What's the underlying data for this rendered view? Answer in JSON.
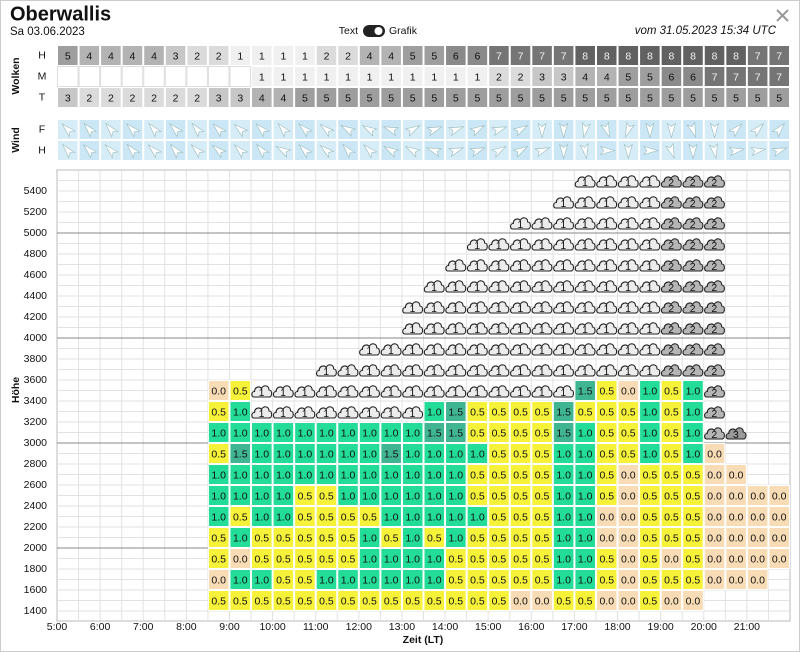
{
  "header": {
    "title": "Oberwallis",
    "date": "Sa 03.06.2023",
    "toggle": [
      "Text",
      "Grafik"
    ],
    "issued": "vom 31.05.2023 15:34 UTC"
  },
  "wolken": {
    "title": "Wolken",
    "rows": [
      {
        "label": "H",
        "values": [
          5,
          4,
          4,
          4,
          4,
          3,
          2,
          2,
          1,
          1,
          1,
          1,
          2,
          2,
          4,
          4,
          5,
          5,
          6,
          6,
          7,
          7,
          7,
          7,
          8,
          8,
          8,
          8,
          8,
          8,
          8,
          8,
          7,
          7
        ]
      },
      {
        "label": "M",
        "values": [
          null,
          null,
          null,
          null,
          null,
          null,
          null,
          null,
          null,
          1,
          1,
          1,
          1,
          1,
          1,
          1,
          1,
          1,
          1,
          1,
          2,
          2,
          3,
          3,
          4,
          4,
          5,
          5,
          6,
          6,
          7,
          7,
          7,
          7
        ]
      },
      {
        "label": "T",
        "values": [
          3,
          2,
          2,
          2,
          2,
          2,
          2,
          3,
          3,
          4,
          4,
          5,
          5,
          5,
          5,
          5,
          5,
          5,
          5,
          5,
          5,
          5,
          5,
          5,
          5,
          5,
          5,
          5,
          5,
          5,
          5,
          5,
          5,
          5
        ]
      }
    ]
  },
  "wind": {
    "title": "Wind",
    "rows": [
      {
        "label": "F",
        "richtung": [
          315,
          320,
          320,
          315,
          320,
          315,
          320,
          315,
          310,
          315,
          320,
          315,
          310,
          300,
          300,
          290,
          60,
          70,
          70,
          60,
          70,
          60,
          180,
          180,
          190,
          160,
          200,
          180,
          180,
          160,
          180,
          45,
          45,
          40
        ]
      },
      {
        "label": "H",
        "richtung": [
          320,
          315,
          315,
          320,
          315,
          320,
          315,
          310,
          315,
          320,
          300,
          315,
          310,
          320,
          315,
          300,
          300,
          290,
          70,
          70,
          60,
          60,
          70,
          180,
          170,
          90,
          180,
          90,
          160,
          180,
          170,
          80,
          80,
          70
        ]
      }
    ]
  },
  "profil": {
    "y_label": "Höhe",
    "x_label": "Zeit (LT)",
    "hoehen": [
      "1400",
      "1600",
      "1800",
      "2000",
      "2200",
      "2400",
      "2600",
      "2800",
      "3000",
      "3200",
      "3400",
      "3600",
      "3800",
      "4000",
      "4200",
      "4400",
      "4600",
      "4800",
      "5000",
      "5200",
      "5400"
    ],
    "zeiten": [
      "5:00",
      "6:00",
      "7:00",
      "8:00",
      "9:00",
      "10:00",
      "11:00",
      "12:00",
      "13:00",
      "14:00",
      "15:00",
      "16:00",
      "17:00",
      "18:00",
      "19:00",
      "20:00",
      "21:00"
    ],
    "farben": {
      "0.0": "#f8dcb6",
      "0.5": "#f6f23a",
      "1.0": "#22dc97",
      "1.5": "#40b592"
    },
    "rows": [
      [
        null,
        null,
        null,
        null,
        null,
        null,
        null,
        "0.5",
        "0.5",
        "0.5",
        "0.5",
        "0.5",
        "0.5",
        "0.5",
        "0.5",
        "0.5",
        "0.5",
        "0.5",
        "0.5",
        "0.5",
        "0.5",
        "0.0",
        "0.0",
        "0.5",
        "0.5",
        "0.0",
        "0.0",
        "0.5",
        "0.0",
        "0.0",
        null,
        null,
        null,
        null
      ],
      [
        null,
        null,
        null,
        null,
        null,
        null,
        null,
        "0.0",
        "1.0",
        "1.0",
        "0.5",
        "0.5",
        "1.0",
        "1.0",
        "1.0",
        "1.0",
        "1.0",
        "1.0",
        "0.5",
        "0.5",
        "0.5",
        "0.5",
        "0.5",
        "1.0",
        "1.0",
        "0.5",
        "0.0",
        "0.5",
        "0.5",
        "0.5",
        "0.0",
        "0.0",
        "0.0",
        null
      ],
      [
        null,
        null,
        null,
        null,
        null,
        null,
        null,
        "0.5",
        "0.0",
        "0.5",
        "0.5",
        "0.5",
        "0.5",
        "0.5",
        "1.0",
        "1.0",
        "1.0",
        "1.0",
        "0.5",
        "0.5",
        "0.5",
        "0.5",
        "0.5",
        "1.0",
        "1.0",
        "0.5",
        "0.0",
        "0.5",
        "0.0",
        "0.5",
        "0.0",
        "0.0",
        "0.0",
        "0.0"
      ],
      [
        null,
        null,
        null,
        null,
        null,
        null,
        null,
        "0.5",
        "1.0",
        "0.5",
        "0.5",
        "0.5",
        "0.5",
        "0.5",
        "1.0",
        "0.5",
        "1.0",
        "0.5",
        "1.0",
        "0.5",
        "0.5",
        "0.5",
        "0.5",
        "1.0",
        "1.0",
        "0.0",
        "0.0",
        "0.5",
        "0.5",
        "0.5",
        "0.0",
        "0.0",
        "0.0",
        "0.0"
      ],
      [
        null,
        null,
        null,
        null,
        null,
        null,
        null,
        "1.0",
        "0.5",
        "1.0",
        "1.0",
        "0.5",
        "0.5",
        "0.5",
        "0.5",
        "1.0",
        "1.0",
        "1.0",
        "1.0",
        "1.0",
        "0.5",
        "0.5",
        "0.5",
        "1.0",
        "1.0",
        "0.0",
        "0.0",
        "0.5",
        "0.5",
        "0.5",
        "0.0",
        "0.0",
        "0.0",
        "0.0"
      ],
      [
        null,
        null,
        null,
        null,
        null,
        null,
        null,
        "1.0",
        "1.0",
        "1.0",
        "1.0",
        "0.5",
        "0.5",
        "1.0",
        "1.0",
        "1.0",
        "1.0",
        "1.0",
        "1.0",
        "0.5",
        "0.5",
        "0.5",
        "0.5",
        "1.0",
        "1.0",
        "0.5",
        "0.0",
        "0.5",
        "0.5",
        "0.5",
        "0.0",
        "0.0",
        "0.0",
        "0.0"
      ],
      [
        null,
        null,
        null,
        null,
        null,
        null,
        null,
        "1.0",
        "1.0",
        "1.0",
        "1.0",
        "1.0",
        "1.0",
        "1.0",
        "1.0",
        "1.0",
        "1.0",
        "1.0",
        "1.0",
        "0.5",
        "0.5",
        "0.5",
        "0.5",
        "1.0",
        "1.0",
        "0.5",
        "0.0",
        "0.5",
        "0.5",
        "0.5",
        "0.0",
        "0.0",
        null,
        null
      ],
      [
        null,
        null,
        null,
        null,
        null,
        null,
        null,
        "0.5",
        "1.5",
        "1.0",
        "1.0",
        "1.0",
        "1.0",
        "1.0",
        "1.0",
        "1.5",
        "1.0",
        "1.0",
        "1.0",
        "1.0",
        "0.5",
        "0.5",
        "0.5",
        "1.0",
        "1.0",
        "0.5",
        "0.5",
        "1.0",
        "0.5",
        "1.0",
        "0.0",
        null,
        null,
        null
      ],
      [
        null,
        null,
        null,
        null,
        null,
        null,
        null,
        "1.0",
        "1.0",
        "1.0",
        "1.0",
        "1.0",
        "1.0",
        "1.0",
        "1.0",
        "1.0",
        "1.0",
        "1.5",
        "1.5",
        "0.5",
        "0.5",
        "0.5",
        "0.5",
        "1.5",
        "1.0",
        "0.5",
        "0.5",
        "1.0",
        "0.5",
        "1.0",
        2,
        3,
        null,
        null
      ],
      [
        null,
        null,
        null,
        null,
        null,
        null,
        null,
        "0.5",
        "1.0",
        1,
        1,
        1,
        1,
        1,
        1,
        1,
        1,
        "1.0",
        "1.5",
        "0.5",
        "0.5",
        "0.5",
        "0.5",
        "1.5",
        "0.5",
        "0.5",
        "0.5",
        "1.0",
        "0.5",
        "1.0",
        2,
        null,
        null,
        null
      ],
      [
        null,
        null,
        null,
        null,
        null,
        null,
        null,
        "0.0",
        "0.5",
        1,
        1,
        1,
        1,
        1,
        1,
        1,
        1,
        1,
        1,
        1,
        1,
        1,
        1,
        1,
        "1.5",
        "0.5",
        "0.0",
        "1.0",
        "0.5",
        "1.0",
        2,
        null,
        null,
        null
      ],
      [
        null,
        null,
        null,
        null,
        null,
        null,
        null,
        null,
        null,
        null,
        null,
        null,
        1,
        1,
        1,
        1,
        1,
        1,
        1,
        1,
        1,
        1,
        1,
        1,
        1,
        1,
        1,
        1,
        2,
        2,
        2,
        null,
        null,
        null
      ],
      [
        null,
        null,
        null,
        null,
        null,
        null,
        null,
        null,
        null,
        null,
        null,
        null,
        null,
        null,
        1,
        1,
        1,
        1,
        1,
        1,
        1,
        1,
        1,
        1,
        1,
        1,
        1,
        1,
        2,
        2,
        2,
        null,
        null,
        null
      ],
      [
        null,
        null,
        null,
        null,
        null,
        null,
        null,
        null,
        null,
        null,
        null,
        null,
        null,
        null,
        null,
        null,
        1,
        1,
        1,
        1,
        1,
        1,
        1,
        1,
        1,
        1,
        1,
        1,
        2,
        2,
        2,
        null,
        null,
        null
      ],
      [
        null,
        null,
        null,
        null,
        null,
        null,
        null,
        null,
        null,
        null,
        null,
        null,
        null,
        null,
        null,
        null,
        1,
        1,
        1,
        1,
        1,
        1,
        1,
        1,
        1,
        1,
        1,
        1,
        2,
        2,
        2,
        null,
        null,
        null
      ],
      [
        null,
        null,
        null,
        null,
        null,
        null,
        null,
        null,
        null,
        null,
        null,
        null,
        null,
        null,
        null,
        null,
        null,
        1,
        1,
        1,
        1,
        1,
        1,
        1,
        1,
        1,
        1,
        1,
        2,
        2,
        2,
        null,
        null,
        null
      ],
      [
        null,
        null,
        null,
        null,
        null,
        null,
        null,
        null,
        null,
        null,
        null,
        null,
        null,
        null,
        null,
        null,
        null,
        null,
        1,
        1,
        1,
        1,
        1,
        1,
        1,
        1,
        1,
        1,
        2,
        2,
        2,
        null,
        null,
        null
      ],
      [
        null,
        null,
        null,
        null,
        null,
        null,
        null,
        null,
        null,
        null,
        null,
        null,
        null,
        null,
        null,
        null,
        null,
        null,
        null,
        1,
        1,
        1,
        1,
        1,
        1,
        1,
        1,
        1,
        2,
        2,
        2,
        null,
        null,
        null
      ],
      [
        null,
        null,
        null,
        null,
        null,
        null,
        null,
        null,
        null,
        null,
        null,
        null,
        null,
        null,
        null,
        null,
        null,
        null,
        null,
        null,
        null,
        1,
        1,
        1,
        1,
        1,
        1,
        1,
        2,
        2,
        2,
        null,
        null,
        null
      ],
      [
        null,
        null,
        null,
        null,
        null,
        null,
        null,
        null,
        null,
        null,
        null,
        null,
        null,
        null,
        null,
        null,
        null,
        null,
        null,
        null,
        null,
        null,
        null,
        1,
        1,
        1,
        1,
        1,
        2,
        2,
        2,
        null,
        null,
        null
      ],
      [
        null,
        null,
        null,
        null,
        null,
        null,
        null,
        null,
        null,
        null,
        null,
        null,
        null,
        null,
        null,
        null,
        null,
        null,
        null,
        null,
        null,
        null,
        null,
        null,
        1,
        1,
        1,
        1,
        2,
        2,
        2,
        null,
        null,
        null
      ]
    ]
  }
}
